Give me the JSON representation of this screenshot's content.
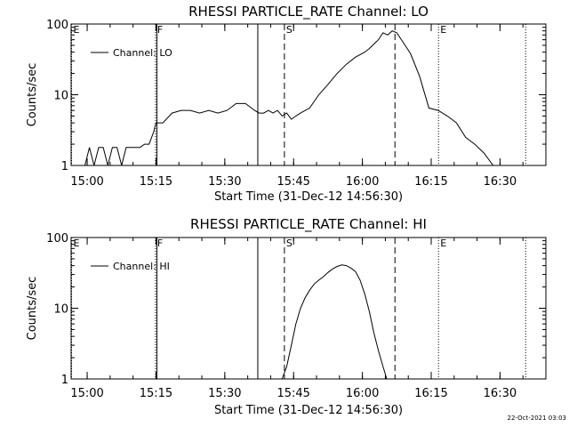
{
  "charts": [
    {
      "title": "RHESSI PARTICLE_RATE Channel: LO",
      "ylabel": "Counts/sec",
      "xlabel": "Start Time (31-Dec-12 14:56:30)",
      "legend": "Channel: LO",
      "y_ticks": [
        "1",
        "10",
        "100"
      ],
      "x_ticks": [
        "15:00",
        "15:15",
        "15:30",
        "15:45",
        "16:00",
        "16:15",
        "16:30"
      ],
      "markers": [
        {
          "label": "E",
          "minute": 0,
          "style": "dotted"
        },
        {
          "label": "F",
          "minute": 18.3,
          "style": "dotted"
        },
        {
          "label": "",
          "minute": 18.6,
          "style": "solid"
        },
        {
          "label": "",
          "minute": 40.6,
          "style": "solid"
        },
        {
          "label": "S",
          "minute": 46.4,
          "style": "dashed"
        },
        {
          "label": "",
          "minute": 70.5,
          "style": "dashed"
        },
        {
          "label": "E",
          "minute": 80.0,
          "style": "dotted"
        },
        {
          "label": "",
          "minute": 99.0,
          "style": "dotted"
        }
      ]
    },
    {
      "title": "RHESSI PARTICLE_RATE Channel: HI",
      "ylabel": "Counts/sec",
      "xlabel": "Start Time (31-Dec-12 14:56:30)",
      "legend": "Channel: HI",
      "y_ticks": [
        "1",
        "10",
        "100"
      ],
      "x_ticks": [
        "15:00",
        "15:15",
        "15:30",
        "15:45",
        "16:00",
        "16:15",
        "16:30"
      ],
      "markers": [
        {
          "label": "E",
          "minute": 0,
          "style": "dotted"
        },
        {
          "label": "F",
          "minute": 18.3,
          "style": "dotted"
        },
        {
          "label": "",
          "minute": 18.6,
          "style": "solid"
        },
        {
          "label": "",
          "minute": 40.6,
          "style": "solid"
        },
        {
          "label": "S",
          "minute": 46.4,
          "style": "dashed"
        },
        {
          "label": "",
          "minute": 70.5,
          "style": "dashed"
        },
        {
          "label": "E",
          "minute": 80.0,
          "style": "dotted"
        },
        {
          "label": "",
          "minute": 99.0,
          "style": "dotted"
        }
      ]
    }
  ],
  "footer": "22-Oct-2021 03:03",
  "chart_data": [
    {
      "type": "line",
      "title": "RHESSI PARTICLE_RATE Channel: LO",
      "xlabel": "Start Time (31-Dec-12 14:56:30)",
      "ylabel": "Counts/sec",
      "y_scale": "log",
      "ylim": [
        1,
        100
      ],
      "xlim_minutes_after_start": [
        0,
        103.5
      ],
      "x_tick_labels": [
        "15:00",
        "15:15",
        "15:30",
        "15:45",
        "16:00",
        "16:15",
        "16:30"
      ],
      "legend": "top-left",
      "series": [
        {
          "name": "Channel: LO",
          "x_minutes": [
            0,
            3,
            4,
            5,
            6,
            7,
            8,
            9,
            10,
            11,
            12,
            13,
            14,
            15,
            16,
            17,
            18,
            18.5,
            19,
            20,
            22,
            24,
            26,
            28,
            30,
            32,
            34,
            36,
            38,
            40,
            41,
            42,
            43,
            44,
            45,
            46,
            47,
            48,
            49,
            50,
            52,
            54,
            56,
            58,
            60,
            62,
            64,
            65,
            66,
            67,
            68,
            69,
            70,
            71,
            72,
            74,
            76,
            78,
            80,
            82,
            84,
            86,
            88,
            90,
            92,
            94,
            96
          ],
          "y_values": [
            1,
            1,
            1.8,
            1,
            1.8,
            1.8,
            1,
            1.8,
            1.8,
            1,
            1.8,
            1.8,
            1.8,
            1.8,
            2,
            2,
            3,
            4,
            4,
            4,
            5.5,
            6,
            6,
            5.5,
            6,
            5.5,
            6,
            7.5,
            7.5,
            6,
            5.5,
            5.5,
            6,
            5.5,
            6,
            5,
            5.5,
            4.5,
            5,
            5.5,
            6.5,
            10,
            14,
            20,
            27,
            34,
            40,
            45,
            52,
            60,
            75,
            70,
            80,
            75,
            60,
            38,
            18,
            6.5,
            6,
            5,
            4,
            2.5,
            2,
            1.5,
            1,
            1,
            1
          ]
        }
      ]
    },
    {
      "type": "line",
      "title": "RHESSI PARTICLE_RATE Channel: HI",
      "xlabel": "Start Time (31-Dec-12 14:56:30)",
      "ylabel": "Counts/sec",
      "y_scale": "log",
      "ylim": [
        1,
        100
      ],
      "xlim_minutes_after_start": [
        0,
        103.5
      ],
      "x_tick_labels": [
        "15:00",
        "15:15",
        "15:30",
        "15:45",
        "16:00",
        "16:15",
        "16:30"
      ],
      "legend": "top-left",
      "series": [
        {
          "name": "Channel: HI",
          "x_minutes": [
            46,
            47,
            48,
            49,
            50,
            51,
            52,
            53,
            54,
            55,
            56,
            57,
            58,
            59,
            60,
            61,
            62,
            63,
            64,
            65,
            66,
            67,
            68,
            68.8,
            69
          ],
          "y_values": [
            1,
            1.5,
            3,
            6,
            10,
            14,
            18,
            22,
            25,
            28,
            32,
            36,
            39,
            41,
            40,
            37,
            33,
            25,
            16,
            9,
            4.5,
            2.5,
            1.5,
            1,
            1
          ]
        }
      ]
    }
  ]
}
